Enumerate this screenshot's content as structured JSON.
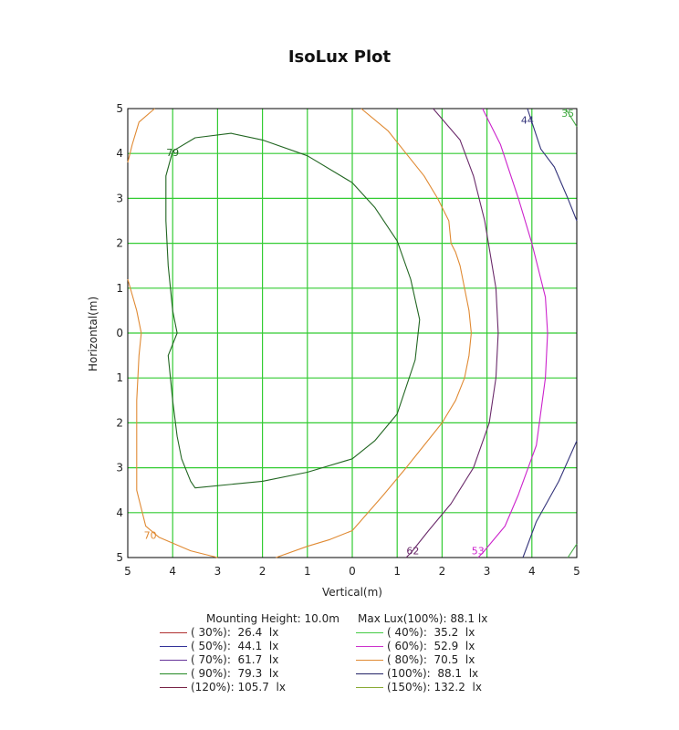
{
  "chart_data": {
    "type": "contour",
    "title": "IsoLux Plot",
    "xlabel": "Vertical(m)",
    "ylabel": "Horizontal(m)",
    "x_ticks": [
      "5",
      "4",
      "3",
      "2",
      "1",
      "0",
      "1",
      "2",
      "3",
      "4",
      "5"
    ],
    "y_ticks": [
      "5",
      "4",
      "3",
      "2",
      "1",
      "0",
      "1",
      "2",
      "3",
      "4",
      "5"
    ],
    "xlim": [
      -5,
      5
    ],
    "ylim": [
      -5,
      5
    ],
    "grid": true,
    "grid_color": "#33cc33",
    "contours": [
      {
        "level": "79",
        "color": "#226622",
        "points": [
          [
            -4,
            4.05
          ],
          [
            -3.5,
            4.35
          ],
          [
            -2.7,
            4.45
          ],
          [
            -2,
            4.3
          ],
          [
            -1,
            3.95
          ],
          [
            0,
            3.35
          ],
          [
            0.5,
            2.8
          ],
          [
            1,
            2.05
          ],
          [
            1.3,
            1.2
          ],
          [
            1.5,
            0.3
          ],
          [
            1.4,
            -0.6
          ],
          [
            1,
            -1.8
          ],
          [
            0.5,
            -2.4
          ],
          [
            0,
            -2.8
          ],
          [
            -1,
            -3.1
          ],
          [
            -2,
            -3.3
          ],
          [
            -3.5,
            -3.45
          ],
          [
            -3.6,
            -3.3
          ],
          [
            -3.8,
            -2.8
          ],
          [
            -3.9,
            -2.3
          ],
          [
            -4,
            -1.5
          ],
          [
            -4.1,
            -0.5
          ],
          [
            -3.9,
            0
          ],
          [
            -4,
            0.5
          ],
          [
            -4.1,
            1.5
          ],
          [
            -4.15,
            2.5
          ],
          [
            -4.15,
            3.5
          ],
          [
            -4,
            4.05
          ]
        ],
        "label": {
          "text": "79",
          "x": -4,
          "y": 4.02
        }
      },
      {
        "level": "70",
        "color": "#e08a33",
        "points_a": [
          [
            0.2,
            5
          ],
          [
            0.8,
            4.5
          ],
          [
            1.2,
            4
          ],
          [
            1.6,
            3.5
          ],
          [
            1.9,
            3
          ],
          [
            2.15,
            2.5
          ],
          [
            2.2,
            2
          ],
          [
            2.3,
            1.8
          ],
          [
            2.4,
            1.5
          ],
          [
            2.5,
            1
          ],
          [
            2.6,
            0.5
          ],
          [
            2.65,
            0
          ],
          [
            2.6,
            -0.5
          ],
          [
            2.5,
            -1
          ],
          [
            2.3,
            -1.5
          ],
          [
            2,
            -2
          ],
          [
            1.6,
            -2.5
          ],
          [
            1.2,
            -3
          ],
          [
            0.7,
            -3.6
          ],
          [
            0,
            -4.4
          ],
          [
            -0.5,
            -4.6
          ],
          [
            -1,
            -4.75
          ],
          [
            -1.7,
            -5
          ]
        ],
        "points_b": [
          [
            -3,
            -5
          ],
          [
            -3.6,
            -4.85
          ],
          [
            -4.3,
            -4.55
          ],
          [
            -4.6,
            -4.3
          ],
          [
            -4.8,
            -3.5
          ],
          [
            -4.8,
            -2.5
          ],
          [
            -4.8,
            -1.5
          ],
          [
            -4.75,
            -0.5
          ],
          [
            -4.7,
            0
          ],
          [
            -4.8,
            0.5
          ],
          [
            -5,
            1.2
          ]
        ],
        "points_c": [
          [
            -5,
            3.8
          ],
          [
            -4.9,
            4.2
          ],
          [
            -4.75,
            4.7
          ],
          [
            -4.4,
            5
          ]
        ],
        "label": {
          "text": "70",
          "x": -4.5,
          "y": -4.5
        }
      },
      {
        "level": "62",
        "color": "#6a2a6a",
        "points": [
          [
            1.8,
            5
          ],
          [
            2.4,
            4.3
          ],
          [
            2.7,
            3.5
          ],
          [
            2.95,
            2.5
          ],
          [
            3.2,
            1
          ],
          [
            3.25,
            0
          ],
          [
            3.2,
            -1
          ],
          [
            3.05,
            -2
          ],
          [
            2.7,
            -3
          ],
          [
            2.2,
            -3.8
          ],
          [
            1.7,
            -4.4
          ],
          [
            1.3,
            -4.9
          ],
          [
            1.2,
            -5
          ]
        ],
        "label": {
          "text": "62",
          "x": 1.35,
          "y": -4.85
        }
      },
      {
        "level": "53",
        "color": "#cc22cc",
        "points": [
          [
            2.9,
            5
          ],
          [
            3.3,
            4.2
          ],
          [
            3.7,
            3
          ],
          [
            4,
            2
          ],
          [
            4.3,
            0.8
          ],
          [
            4.35,
            0
          ],
          [
            4.3,
            -1
          ],
          [
            4.1,
            -2.5
          ],
          [
            3.7,
            -3.6
          ],
          [
            3.4,
            -4.3
          ],
          [
            2.9,
            -4.9
          ],
          [
            2.8,
            -5
          ]
        ],
        "label": {
          "text": "53",
          "x": 2.8,
          "y": -4.85
        }
      },
      {
        "level": "44",
        "color": "#33337a",
        "points_a": [
          [
            3.9,
            5
          ],
          [
            4.2,
            4.1
          ],
          [
            4.5,
            3.7
          ],
          [
            4.8,
            3
          ],
          [
            5,
            2.5
          ]
        ],
        "points_b": [
          [
            5,
            -2.4
          ],
          [
            4.6,
            -3.3
          ],
          [
            4.1,
            -4.2
          ],
          [
            3.8,
            -5
          ]
        ],
        "label": {
          "text": "44",
          "x": 3.9,
          "y": 4.75
        }
      },
      {
        "level": "35",
        "color": "#44aa44",
        "points_a": [
          [
            4.75,
            5
          ],
          [
            5,
            4.6
          ]
        ],
        "points_b": [
          [
            4.8,
            -5
          ],
          [
            5,
            -4.7
          ]
        ],
        "label": {
          "text": "35",
          "x": 4.8,
          "y": 4.9
        }
      }
    ],
    "info": {
      "mounting": "Mounting Height: 10.0m",
      "maxlux": "Max Lux(100%): 88.1  lx"
    },
    "legend": [
      {
        "text": "( 30%):  26.4  lx",
        "color": "#b03030"
      },
      {
        "text": "( 40%):  35.2  lx",
        "color": "#44cc44"
      },
      {
        "text": "( 50%):  44.1  lx",
        "color": "#333399"
      },
      {
        "text": "( 60%):  52.9  lx",
        "color": "#cc33cc"
      },
      {
        "text": "( 70%):  61.7  lx",
        "color": "#663399"
      },
      {
        "text": "( 80%):  70.5  lx",
        "color": "#e08a33"
      },
      {
        "text": "( 90%):  79.3  lx",
        "color": "#228822"
      },
      {
        "text": "(100%):  88.1  lx",
        "color": "#222266"
      },
      {
        "text": "(120%): 105.7  lx",
        "color": "#772244"
      },
      {
        "text": "(150%): 132.2  lx",
        "color": "#88aa33"
      }
    ]
  }
}
